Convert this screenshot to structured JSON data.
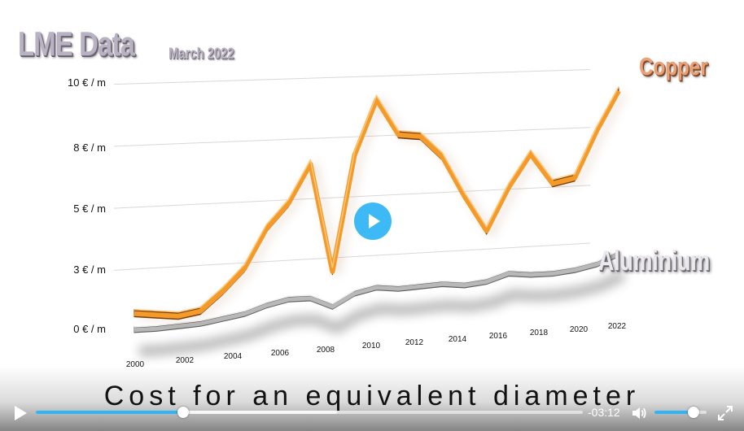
{
  "title": "LME Data",
  "subtitle": "March 2022",
  "caption": "Cost for an equivalent diameter",
  "player": {
    "time_remaining": "-03:12",
    "progress_fraction": 0.27,
    "buffer_fraction": 0.55,
    "volume_fraction": 0.75,
    "accent_color": "#2fb4f6",
    "icons": [
      "play-icon",
      "volume-icon",
      "fullscreen-icon"
    ]
  },
  "chart_data": {
    "type": "line",
    "title": "LME Data",
    "subtitle": "March 2022",
    "xlabel": "",
    "ylabel": "",
    "y_tick_labels": [
      "0 € / m",
      "3 € / m",
      "5 € / m",
      "8 € / m",
      "10 € / m"
    ],
    "x_tick_labels": [
      "2000",
      "2002",
      "2004",
      "2006",
      "2008",
      "2010",
      "2012",
      "2014",
      "2016",
      "2018",
      "2020",
      "2022"
    ],
    "grid": true,
    "series": [
      {
        "name": "Copper",
        "color": "#f08a1c",
        "x": [
          2000,
          2001,
          2002,
          2003,
          2004,
          2005,
          2006,
          2007,
          2008,
          2009,
          2010,
          2011,
          2012,
          2013,
          2014,
          2015,
          2016,
          2017,
          2018,
          2019,
          2020,
          2021,
          2022
        ],
        "y": [
          0.8,
          0.7,
          0.6,
          0.75,
          1.5,
          2.4,
          4.0,
          5.0,
          6.6,
          2.1,
          6.9,
          9.2,
          7.7,
          7.6,
          6.7,
          5.0,
          3.5,
          5.3,
          6.7,
          5.4,
          5.6,
          7.6,
          9.3
        ]
      },
      {
        "name": "Aluminium",
        "color": "#8f8f8f",
        "x": [
          2000,
          2001,
          2002,
          2003,
          2004,
          2005,
          2006,
          2007,
          2008,
          2009,
          2010,
          2011,
          2012,
          2013,
          2014,
          2015,
          2016,
          2017,
          2018,
          2019,
          2020,
          2021,
          2022
        ],
        "y": [
          0.1,
          0.1,
          0.15,
          0.2,
          0.35,
          0.5,
          0.8,
          1.0,
          1.0,
          0.6,
          1.1,
          1.3,
          1.2,
          1.25,
          1.3,
          1.2,
          1.3,
          1.6,
          1.5,
          1.5,
          1.6,
          1.8,
          2.2
        ]
      }
    ]
  }
}
